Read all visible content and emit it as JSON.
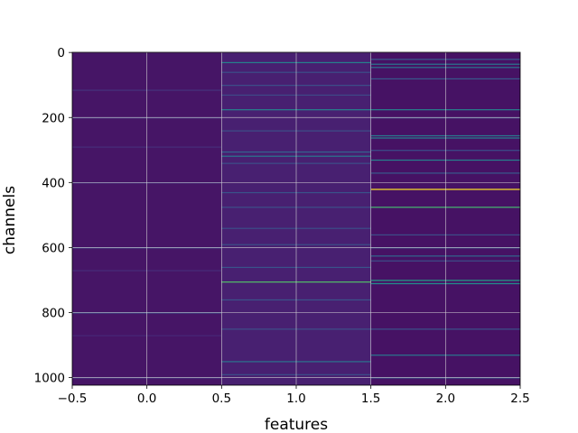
{
  "chart_data": {
    "type": "heatmap",
    "title": "",
    "xlabel": "features",
    "ylabel": "channels",
    "xlim": [
      -0.5,
      2.5
    ],
    "ylim": [
      1023.5,
      -0.5
    ],
    "x_ticks": [
      "−0.5",
      "0.0",
      "0.5",
      "1.0",
      "1.5",
      "2.0",
      "2.5"
    ],
    "y_ticks": [
      "0",
      "200",
      "400",
      "600",
      "800",
      "1000"
    ],
    "x_tick_values": [
      -0.5,
      0.0,
      0.5,
      1.0,
      1.5,
      2.0,
      2.5
    ],
    "y_tick_values": [
      0,
      200,
      400,
      600,
      800,
      1000
    ],
    "grid": true,
    "colormap": "viridis",
    "n_rows": 1024,
    "n_cols": 3,
    "columns": [
      {
        "x": 0,
        "base": 0.07,
        "bright_rows": [
          {
            "row": 115,
            "value": 0.18
          },
          {
            "row": 200,
            "value": 0.22
          },
          {
            "row": 290,
            "value": 0.16
          },
          {
            "row": 400,
            "value": 0.2
          },
          {
            "row": 600,
            "value": 0.28
          },
          {
            "row": 670,
            "value": 0.16
          },
          {
            "row": 800,
            "value": 0.32
          },
          {
            "row": 870,
            "value": 0.14
          },
          {
            "row": 1000,
            "value": 0.22
          }
        ]
      },
      {
        "x": 1,
        "base": 0.11,
        "bright_rows": [
          {
            "row": 30,
            "value": 0.55
          },
          {
            "row": 60,
            "value": 0.3
          },
          {
            "row": 100,
            "value": 0.3
          },
          {
            "row": 130,
            "value": 0.28
          },
          {
            "row": 175,
            "value": 0.55
          },
          {
            "row": 240,
            "value": 0.3
          },
          {
            "row": 305,
            "value": 0.4
          },
          {
            "row": 318,
            "value": 0.5
          },
          {
            "row": 340,
            "value": 0.3
          },
          {
            "row": 430,
            "value": 0.32
          },
          {
            "row": 475,
            "value": 0.3
          },
          {
            "row": 540,
            "value": 0.3
          },
          {
            "row": 590,
            "value": 0.3
          },
          {
            "row": 660,
            "value": 0.32
          },
          {
            "row": 705,
            "value": 0.82
          },
          {
            "row": 760,
            "value": 0.32
          },
          {
            "row": 850,
            "value": 0.3
          },
          {
            "row": 950,
            "value": 0.48
          },
          {
            "row": 990,
            "value": 0.3
          }
        ]
      },
      {
        "x": 2,
        "base": 0.06,
        "bright_rows": [
          {
            "row": 20,
            "value": 0.35
          },
          {
            "row": 35,
            "value": 0.5
          },
          {
            "row": 45,
            "value": 0.48
          },
          {
            "row": 80,
            "value": 0.35
          },
          {
            "row": 175,
            "value": 0.55
          },
          {
            "row": 200,
            "value": 0.3
          },
          {
            "row": 255,
            "value": 0.5
          },
          {
            "row": 262,
            "value": 0.55
          },
          {
            "row": 300,
            "value": 0.3
          },
          {
            "row": 330,
            "value": 0.55
          },
          {
            "row": 370,
            "value": 0.35
          },
          {
            "row": 420,
            "value": 1.0
          },
          {
            "row": 475,
            "value": 0.8
          },
          {
            "row": 560,
            "value": 0.3
          },
          {
            "row": 600,
            "value": 0.32
          },
          {
            "row": 625,
            "value": 0.42
          },
          {
            "row": 640,
            "value": 0.3
          },
          {
            "row": 700,
            "value": 0.7
          },
          {
            "row": 710,
            "value": 0.62
          },
          {
            "row": 850,
            "value": 0.32
          },
          {
            "row": 930,
            "value": 0.5
          },
          {
            "row": 1000,
            "value": 0.35
          }
        ]
      }
    ]
  }
}
